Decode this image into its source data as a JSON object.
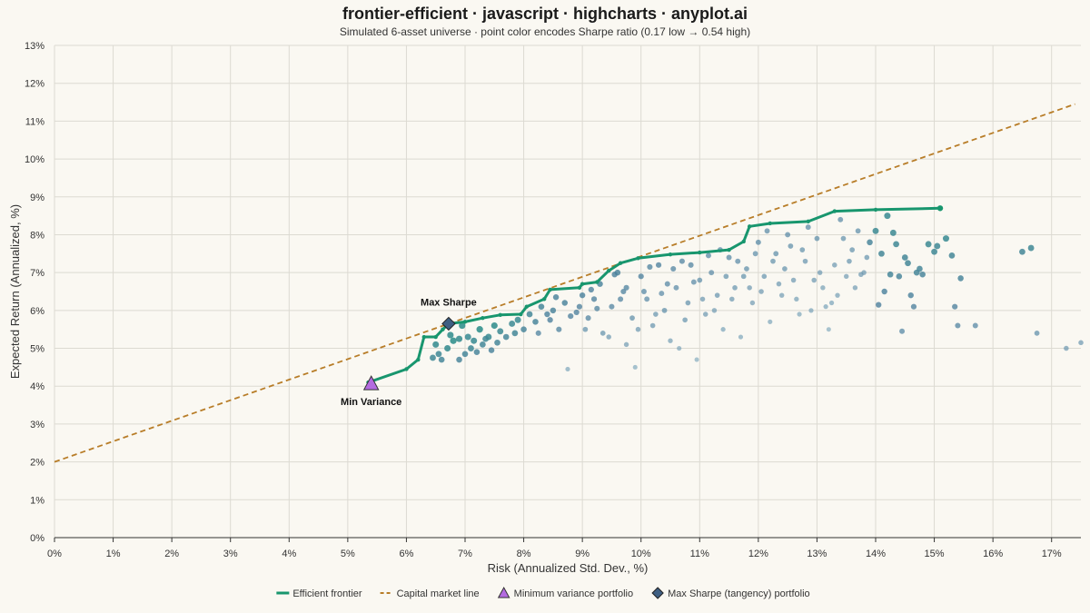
{
  "chart_data": {
    "type": "scatter",
    "title": "frontier-efficient · javascript · highcharts · anyplot.ai",
    "subtitle": "Simulated 6-asset universe · point color encodes Sharpe ratio (0.17 low → 0.54 high)",
    "xlabel": "Risk (Annualized Std. Dev., %)",
    "ylabel": "Expected Return (Annualized, %)",
    "xlim": [
      0,
      17.5
    ],
    "ylim": [
      0,
      13
    ],
    "x_ticks": [
      "0%",
      "1%",
      "2%",
      "3%",
      "4%",
      "5%",
      "6%",
      "7%",
      "8%",
      "9%",
      "10%",
      "11%",
      "12%",
      "13%",
      "14%",
      "15%",
      "16%",
      "17%"
    ],
    "y_ticks": [
      "0%",
      "1%",
      "2%",
      "3%",
      "4%",
      "5%",
      "6%",
      "7%",
      "8%",
      "9%",
      "10%",
      "11%",
      "12%",
      "13%"
    ],
    "grid": true,
    "legend_position": "bottom-center",
    "sharpe_color_range": {
      "low": 0.17,
      "high": 0.54,
      "low_color": "#8fb5c8",
      "mid_color": "#4a7d9c",
      "high_color": "#2f9a8a"
    },
    "colors": {
      "frontier": "#18966e",
      "cml": "#b87d28",
      "min_var": "#b36be0",
      "max_sharpe": "#3f5f82"
    },
    "series": [
      {
        "name": "Efficient frontier",
        "type": "line",
        "points": [
          [
            5.35,
            4.1
          ],
          [
            6.0,
            4.45
          ],
          [
            6.2,
            4.7
          ],
          [
            6.3,
            5.3
          ],
          [
            6.5,
            5.3
          ],
          [
            6.62,
            5.5
          ],
          [
            6.72,
            5.65
          ],
          [
            7.0,
            5.7
          ],
          [
            7.3,
            5.8
          ],
          [
            7.6,
            5.88
          ],
          [
            7.95,
            5.9
          ],
          [
            8.05,
            6.1
          ],
          [
            8.35,
            6.3
          ],
          [
            8.45,
            6.55
          ],
          [
            8.95,
            6.6
          ],
          [
            9.0,
            6.7
          ],
          [
            9.25,
            6.75
          ],
          [
            9.45,
            7.05
          ],
          [
            9.65,
            7.25
          ],
          [
            9.95,
            7.38
          ],
          [
            10.5,
            7.48
          ],
          [
            11.0,
            7.53
          ],
          [
            11.5,
            7.6
          ],
          [
            11.75,
            7.82
          ],
          [
            11.85,
            8.22
          ],
          [
            12.2,
            8.3
          ],
          [
            12.85,
            8.35
          ],
          [
            13.3,
            8.62
          ],
          [
            14.0,
            8.66
          ],
          [
            15.1,
            8.7
          ]
        ]
      },
      {
        "name": "Capital market line",
        "type": "dashed-line",
        "points": [
          [
            0,
            2.0
          ],
          [
            17.4,
            11.45
          ]
        ]
      },
      {
        "name": "Minimum variance portfolio",
        "type": "marker",
        "marker": "triangle",
        "x": 5.4,
        "y": 4.05
      },
      {
        "name": "Max Sharpe (tangency) portfolio",
        "type": "marker",
        "marker": "diamond",
        "x": 6.72,
        "y": 5.65
      }
    ],
    "annotations": [
      {
        "text": "Max Sharpe",
        "x": 6.72,
        "y": 5.65
      },
      {
        "text": "Min Variance",
        "x": 5.4,
        "y": 4.05
      }
    ],
    "portfolios": [
      {
        "x": 6.7,
        "y": 5.0,
        "s": 0.48
      },
      {
        "x": 6.8,
        "y": 5.2,
        "s": 0.5
      },
      {
        "x": 6.9,
        "y": 5.25,
        "s": 0.48
      },
      {
        "x": 7.1,
        "y": 5.0,
        "s": 0.45
      },
      {
        "x": 7.2,
        "y": 4.9,
        "s": 0.42
      },
      {
        "x": 7.25,
        "y": 5.5,
        "s": 0.5
      },
      {
        "x": 7.4,
        "y": 5.3,
        "s": 0.47
      },
      {
        "x": 7.5,
        "y": 5.6,
        "s": 0.49
      },
      {
        "x": 7.6,
        "y": 5.45,
        "s": 0.46
      },
      {
        "x": 7.7,
        "y": 5.3,
        "s": 0.43
      },
      {
        "x": 7.85,
        "y": 5.4,
        "s": 0.44
      },
      {
        "x": 7.9,
        "y": 5.75,
        "s": 0.47
      },
      {
        "x": 6.55,
        "y": 4.85,
        "s": 0.45
      },
      {
        "x": 6.6,
        "y": 4.7,
        "s": 0.43
      },
      {
        "x": 6.45,
        "y": 4.75,
        "s": 0.45
      },
      {
        "x": 6.9,
        "y": 4.7,
        "s": 0.42
      },
      {
        "x": 7.0,
        "y": 4.85,
        "s": 0.43
      },
      {
        "x": 7.15,
        "y": 5.2,
        "s": 0.47
      },
      {
        "x": 7.3,
        "y": 5.1,
        "s": 0.44
      },
      {
        "x": 7.45,
        "y": 4.95,
        "s": 0.41
      },
      {
        "x": 6.95,
        "y": 5.6,
        "s": 0.5
      },
      {
        "x": 7.05,
        "y": 5.3,
        "s": 0.47
      },
      {
        "x": 7.35,
        "y": 5.25,
        "s": 0.45
      },
      {
        "x": 7.55,
        "y": 5.15,
        "s": 0.43
      },
      {
        "x": 6.5,
        "y": 5.1,
        "s": 0.48
      },
      {
        "x": 6.75,
        "y": 5.35,
        "s": 0.49
      },
      {
        "x": 7.8,
        "y": 5.65,
        "s": 0.46
      },
      {
        "x": 8.0,
        "y": 5.5,
        "s": 0.42
      },
      {
        "x": 8.1,
        "y": 5.9,
        "s": 0.44
      },
      {
        "x": 8.2,
        "y": 5.7,
        "s": 0.42
      },
      {
        "x": 8.3,
        "y": 6.1,
        "s": 0.43
      },
      {
        "x": 8.4,
        "y": 5.9,
        "s": 0.4
      },
      {
        "x": 8.5,
        "y": 6.0,
        "s": 0.41
      },
      {
        "x": 8.6,
        "y": 5.5,
        "s": 0.37
      },
      {
        "x": 8.7,
        "y": 6.2,
        "s": 0.41
      },
      {
        "x": 8.75,
        "y": 4.45,
        "s": 0.26
      },
      {
        "x": 8.9,
        "y": 5.95,
        "s": 0.38
      },
      {
        "x": 9.0,
        "y": 6.4,
        "s": 0.4
      },
      {
        "x": 9.1,
        "y": 5.8,
        "s": 0.36
      },
      {
        "x": 9.2,
        "y": 6.3,
        "s": 0.38
      },
      {
        "x": 9.3,
        "y": 6.7,
        "s": 0.41
      },
      {
        "x": 9.35,
        "y": 5.4,
        "s": 0.32
      },
      {
        "x": 9.5,
        "y": 6.1,
        "s": 0.36
      },
      {
        "x": 9.6,
        "y": 7.0,
        "s": 0.41
      },
      {
        "x": 9.7,
        "y": 6.5,
        "s": 0.37
      },
      {
        "x": 9.75,
        "y": 5.1,
        "s": 0.29
      },
      {
        "x": 9.85,
        "y": 5.8,
        "s": 0.33
      },
      {
        "x": 9.9,
        "y": 4.5,
        "s": 0.25
      },
      {
        "x": 10.0,
        "y": 6.9,
        "s": 0.38
      },
      {
        "x": 10.1,
        "y": 6.3,
        "s": 0.34
      },
      {
        "x": 10.2,
        "y": 5.6,
        "s": 0.31
      },
      {
        "x": 10.3,
        "y": 7.2,
        "s": 0.38
      },
      {
        "x": 10.4,
        "y": 6.0,
        "s": 0.33
      },
      {
        "x": 10.5,
        "y": 5.2,
        "s": 0.28
      },
      {
        "x": 10.6,
        "y": 6.6,
        "s": 0.34
      },
      {
        "x": 10.7,
        "y": 7.3,
        "s": 0.36
      },
      {
        "x": 10.8,
        "y": 6.2,
        "s": 0.32
      },
      {
        "x": 10.95,
        "y": 4.7,
        "s": 0.24
      },
      {
        "x": 11.0,
        "y": 6.8,
        "s": 0.33
      },
      {
        "x": 11.1,
        "y": 5.9,
        "s": 0.3
      },
      {
        "x": 11.2,
        "y": 7.0,
        "s": 0.34
      },
      {
        "x": 11.3,
        "y": 6.4,
        "s": 0.31
      },
      {
        "x": 11.4,
        "y": 5.5,
        "s": 0.27
      },
      {
        "x": 11.5,
        "y": 7.4,
        "s": 0.35
      },
      {
        "x": 11.6,
        "y": 6.6,
        "s": 0.31
      },
      {
        "x": 11.7,
        "y": 5.3,
        "s": 0.26
      },
      {
        "x": 11.8,
        "y": 7.1,
        "s": 0.33
      },
      {
        "x": 11.9,
        "y": 6.2,
        "s": 0.29
      },
      {
        "x": 12.0,
        "y": 7.8,
        "s": 0.35
      },
      {
        "x": 12.1,
        "y": 6.9,
        "s": 0.31
      },
      {
        "x": 12.2,
        "y": 5.7,
        "s": 0.26
      },
      {
        "x": 12.3,
        "y": 7.5,
        "s": 0.33
      },
      {
        "x": 12.4,
        "y": 6.4,
        "s": 0.29
      },
      {
        "x": 12.5,
        "y": 8.0,
        "s": 0.34
      },
      {
        "x": 12.6,
        "y": 6.8,
        "s": 0.3
      },
      {
        "x": 12.7,
        "y": 5.9,
        "s": 0.26
      },
      {
        "x": 12.8,
        "y": 7.3,
        "s": 0.31
      },
      {
        "x": 12.9,
        "y": 6.0,
        "s": 0.27
      },
      {
        "x": 13.0,
        "y": 7.9,
        "s": 0.33
      },
      {
        "x": 13.1,
        "y": 6.6,
        "s": 0.28
      },
      {
        "x": 13.2,
        "y": 5.5,
        "s": 0.24
      },
      {
        "x": 13.3,
        "y": 7.2,
        "s": 0.3
      },
      {
        "x": 13.4,
        "y": 8.4,
        "s": 0.34
      },
      {
        "x": 13.5,
        "y": 6.9,
        "s": 0.29
      },
      {
        "x": 13.6,
        "y": 7.6,
        "s": 0.32
      },
      {
        "x": 13.7,
        "y": 8.1,
        "s": 0.33
      },
      {
        "x": 13.8,
        "y": 7.0,
        "s": 0.3
      },
      {
        "x": 13.9,
        "y": 7.8,
        "s": 0.42
      },
      {
        "x": 14.0,
        "y": 8.1,
        "s": 0.46
      },
      {
        "x": 14.1,
        "y": 7.5,
        "s": 0.44
      },
      {
        "x": 14.15,
        "y": 6.5,
        "s": 0.4
      },
      {
        "x": 14.2,
        "y": 8.5,
        "s": 0.47
      },
      {
        "x": 14.3,
        "y": 8.05,
        "s": 0.46
      },
      {
        "x": 14.4,
        "y": 6.9,
        "s": 0.42
      },
      {
        "x": 14.45,
        "y": 5.45,
        "s": 0.35
      },
      {
        "x": 14.5,
        "y": 7.4,
        "s": 0.44
      },
      {
        "x": 14.6,
        "y": 6.4,
        "s": 0.4
      },
      {
        "x": 14.7,
        "y": 7.0,
        "s": 0.43
      },
      {
        "x": 14.8,
        "y": 6.95,
        "s": 0.42
      },
      {
        "x": 14.9,
        "y": 7.75,
        "s": 0.46
      },
      {
        "x": 15.0,
        "y": 7.55,
        "s": 0.45
      },
      {
        "x": 15.2,
        "y": 7.9,
        "s": 0.47
      },
      {
        "x": 15.3,
        "y": 7.45,
        "s": 0.44
      },
      {
        "x": 15.35,
        "y": 6.1,
        "s": 0.38
      },
      {
        "x": 15.4,
        "y": 5.6,
        "s": 0.36
      },
      {
        "x": 15.45,
        "y": 6.85,
        "s": 0.42
      },
      {
        "x": 15.7,
        "y": 5.6,
        "s": 0.35
      },
      {
        "x": 16.5,
        "y": 7.55,
        "s": 0.44
      },
      {
        "x": 16.65,
        "y": 7.65,
        "s": 0.45
      },
      {
        "x": 16.75,
        "y": 5.4,
        "s": 0.33
      },
      {
        "x": 17.25,
        "y": 5.0,
        "s": 0.3
      },
      {
        "x": 17.5,
        "y": 5.15,
        "s": 0.3
      },
      {
        "x": 9.55,
        "y": 6.95,
        "s": 0.4
      },
      {
        "x": 10.05,
        "y": 6.5,
        "s": 0.35
      },
      {
        "x": 10.45,
        "y": 6.7,
        "s": 0.35
      },
      {
        "x": 10.85,
        "y": 7.2,
        "s": 0.36
      },
      {
        "x": 11.25,
        "y": 6.0,
        "s": 0.29
      },
      {
        "x": 11.65,
        "y": 7.3,
        "s": 0.34
      },
      {
        "x": 12.05,
        "y": 6.5,
        "s": 0.3
      },
      {
        "x": 12.45,
        "y": 7.1,
        "s": 0.32
      },
      {
        "x": 12.85,
        "y": 8.2,
        "s": 0.34
      },
      {
        "x": 13.25,
        "y": 6.2,
        "s": 0.27
      },
      {
        "x": 13.65,
        "y": 6.6,
        "s": 0.29
      },
      {
        "x": 9.05,
        "y": 5.5,
        "s": 0.32
      },
      {
        "x": 9.45,
        "y": 5.3,
        "s": 0.3
      },
      {
        "x": 9.95,
        "y": 5.5,
        "s": 0.3
      },
      {
        "x": 10.25,
        "y": 5.9,
        "s": 0.31
      },
      {
        "x": 10.65,
        "y": 5.0,
        "s": 0.26
      },
      {
        "x": 11.05,
        "y": 6.3,
        "s": 0.3
      },
      {
        "x": 11.45,
        "y": 6.9,
        "s": 0.32
      },
      {
        "x": 11.85,
        "y": 6.6,
        "s": 0.3
      },
      {
        "x": 12.25,
        "y": 7.3,
        "s": 0.32
      },
      {
        "x": 12.65,
        "y": 6.3,
        "s": 0.28
      },
      {
        "x": 13.05,
        "y": 7.0,
        "s": 0.3
      },
      {
        "x": 13.45,
        "y": 7.9,
        "s": 0.32
      },
      {
        "x": 13.85,
        "y": 7.4,
        "s": 0.31
      },
      {
        "x": 8.55,
        "y": 6.35,
        "s": 0.41
      },
      {
        "x": 8.95,
        "y": 6.1,
        "s": 0.38
      },
      {
        "x": 9.15,
        "y": 6.55,
        "s": 0.39
      },
      {
        "x": 9.65,
        "y": 6.3,
        "s": 0.36
      },
      {
        "x": 10.15,
        "y": 7.15,
        "s": 0.37
      },
      {
        "x": 10.55,
        "y": 7.1,
        "s": 0.36
      },
      {
        "x": 10.9,
        "y": 6.75,
        "s": 0.34
      },
      {
        "x": 11.35,
        "y": 7.6,
        "s": 0.35
      },
      {
        "x": 11.75,
        "y": 6.9,
        "s": 0.32
      },
      {
        "x": 12.15,
        "y": 8.1,
        "s": 0.34
      },
      {
        "x": 12.55,
        "y": 7.7,
        "s": 0.33
      },
      {
        "x": 12.95,
        "y": 6.8,
        "s": 0.3
      },
      {
        "x": 13.35,
        "y": 6.4,
        "s": 0.28
      },
      {
        "x": 13.75,
        "y": 6.95,
        "s": 0.3
      },
      {
        "x": 8.25,
        "y": 5.4,
        "s": 0.37
      },
      {
        "x": 8.45,
        "y": 5.75,
        "s": 0.39
      },
      {
        "x": 8.8,
        "y": 5.85,
        "s": 0.38
      },
      {
        "x": 9.25,
        "y": 6.05,
        "s": 0.37
      },
      {
        "x": 9.75,
        "y": 6.6,
        "s": 0.37
      },
      {
        "x": 10.35,
        "y": 6.45,
        "s": 0.34
      },
      {
        "x": 10.75,
        "y": 5.75,
        "s": 0.31
      },
      {
        "x": 11.15,
        "y": 7.45,
        "s": 0.35
      },
      {
        "x": 11.55,
        "y": 6.3,
        "s": 0.3
      },
      {
        "x": 11.95,
        "y": 7.5,
        "s": 0.33
      },
      {
        "x": 12.35,
        "y": 6.7,
        "s": 0.3
      },
      {
        "x": 12.75,
        "y": 7.6,
        "s": 0.32
      },
      {
        "x": 13.15,
        "y": 6.1,
        "s": 0.27
      },
      {
        "x": 13.55,
        "y": 7.3,
        "s": 0.31
      },
      {
        "x": 14.05,
        "y": 6.15,
        "s": 0.39
      },
      {
        "x": 14.25,
        "y": 6.95,
        "s": 0.43
      },
      {
        "x": 14.55,
        "y": 7.25,
        "s": 0.44
      },
      {
        "x": 14.65,
        "y": 6.1,
        "s": 0.38
      },
      {
        "x": 14.35,
        "y": 7.75,
        "s": 0.45
      },
      {
        "x": 15.05,
        "y": 7.7,
        "s": 0.45
      },
      {
        "x": 14.75,
        "y": 7.1,
        "s": 0.43
      }
    ]
  }
}
